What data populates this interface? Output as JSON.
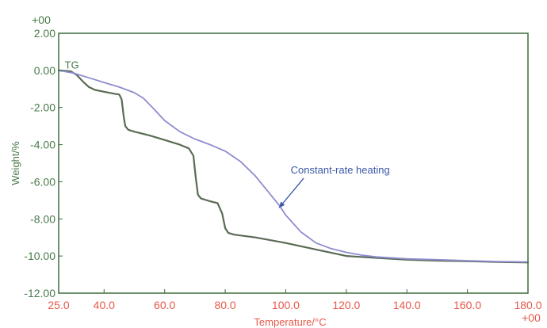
{
  "chart_data": {
    "type": "line",
    "xlabel": "Temperature/°C",
    "ylabel": "Weight/%",
    "x_ticks": [
      {
        "value": 25,
        "label": "25.0"
      },
      {
        "value": 40,
        "label": "40.0"
      },
      {
        "value": 60,
        "label": "60.0"
      },
      {
        "value": 80,
        "label": "80.0"
      },
      {
        "value": 100,
        "label": "100.0"
      },
      {
        "value": 120,
        "label": "120.0"
      },
      {
        "value": 140,
        "label": "140.0"
      },
      {
        "value": 160,
        "label": "160.0"
      },
      {
        "value": 180,
        "label": "180.0"
      }
    ],
    "y_ticks": [
      {
        "value": 2,
        "label": "2.00"
      },
      {
        "value": 0,
        "label": "0.00"
      },
      {
        "value": -2,
        "label": "-2.00"
      },
      {
        "value": -4,
        "label": "-4.00"
      },
      {
        "value": -6,
        "label": "-6.00"
      },
      {
        "value": -8,
        "label": "-8.00"
      },
      {
        "value": -10,
        "label": "-10.00"
      },
      {
        "value": -12,
        "label": "-12.00"
      }
    ],
    "x_exponent": "+00",
    "y_exponent": "+00",
    "xlim": [
      25,
      180
    ],
    "ylim": [
      -12,
      2
    ],
    "grid": false,
    "colors": {
      "x_axis_text": "#e8584a",
      "y_axis_text": "#4a7a4a",
      "frame": "#3d6b3d",
      "annotation": "#3a57a8"
    },
    "series": [
      {
        "label": "TG",
        "color": "#5a6b55",
        "points": [
          [
            25,
            0
          ],
          [
            29,
            -0.05
          ],
          [
            31,
            -0.25
          ],
          [
            33,
            -0.6
          ],
          [
            35,
            -0.9
          ],
          [
            37,
            -1.05
          ],
          [
            40,
            -1.15
          ],
          [
            43,
            -1.25
          ],
          [
            45,
            -1.3
          ],
          [
            45.8,
            -1.55
          ],
          [
            46.5,
            -2.5
          ],
          [
            47,
            -3.0
          ],
          [
            48,
            -3.2
          ],
          [
            50,
            -3.3
          ],
          [
            55,
            -3.5
          ],
          [
            60,
            -3.75
          ],
          [
            65,
            -4.0
          ],
          [
            68,
            -4.2
          ],
          [
            69.5,
            -4.6
          ],
          [
            70.3,
            -5.8
          ],
          [
            71,
            -6.7
          ],
          [
            72,
            -6.9
          ],
          [
            75,
            -7.05
          ],
          [
            77.5,
            -7.15
          ],
          [
            79,
            -7.7
          ],
          [
            80,
            -8.5
          ],
          [
            81,
            -8.75
          ],
          [
            83,
            -8.85
          ],
          [
            90,
            -9.0
          ],
          [
            100,
            -9.3
          ],
          [
            110,
            -9.65
          ],
          [
            120,
            -10.0
          ],
          [
            125,
            -10.05
          ],
          [
            130,
            -10.1
          ],
          [
            140,
            -10.2
          ],
          [
            150,
            -10.25
          ],
          [
            160,
            -10.28
          ],
          [
            170,
            -10.32
          ],
          [
            180,
            -10.35
          ]
        ]
      },
      {
        "label": "Constant-rate heating",
        "color": "#8e8ccf",
        "points": [
          [
            25,
            0
          ],
          [
            30,
            -0.15
          ],
          [
            35,
            -0.4
          ],
          [
            40,
            -0.65
          ],
          [
            45,
            -0.9
          ],
          [
            50,
            -1.2
          ],
          [
            53,
            -1.5
          ],
          [
            56,
            -2.0
          ],
          [
            60,
            -2.7
          ],
          [
            65,
            -3.3
          ],
          [
            70,
            -3.7
          ],
          [
            75,
            -4.0
          ],
          [
            80,
            -4.35
          ],
          [
            85,
            -4.9
          ],
          [
            90,
            -5.7
          ],
          [
            95,
            -6.7
          ],
          [
            98,
            -7.3
          ],
          [
            100,
            -7.8
          ],
          [
            105,
            -8.7
          ],
          [
            110,
            -9.3
          ],
          [
            115,
            -9.6
          ],
          [
            120,
            -9.8
          ],
          [
            125,
            -9.95
          ],
          [
            130,
            -10.05
          ],
          [
            140,
            -10.15
          ],
          [
            150,
            -10.2
          ],
          [
            160,
            -10.25
          ],
          [
            170,
            -10.3
          ],
          [
            180,
            -10.32
          ]
        ]
      }
    ],
    "annotations": [
      {
        "text": "TG",
        "x": 27,
        "y": 0.1
      },
      {
        "text": "Constant-rate heating",
        "x": 118,
        "y": -5.55,
        "arrow_to": [
          97.8,
          -7.4
        ]
      }
    ]
  }
}
